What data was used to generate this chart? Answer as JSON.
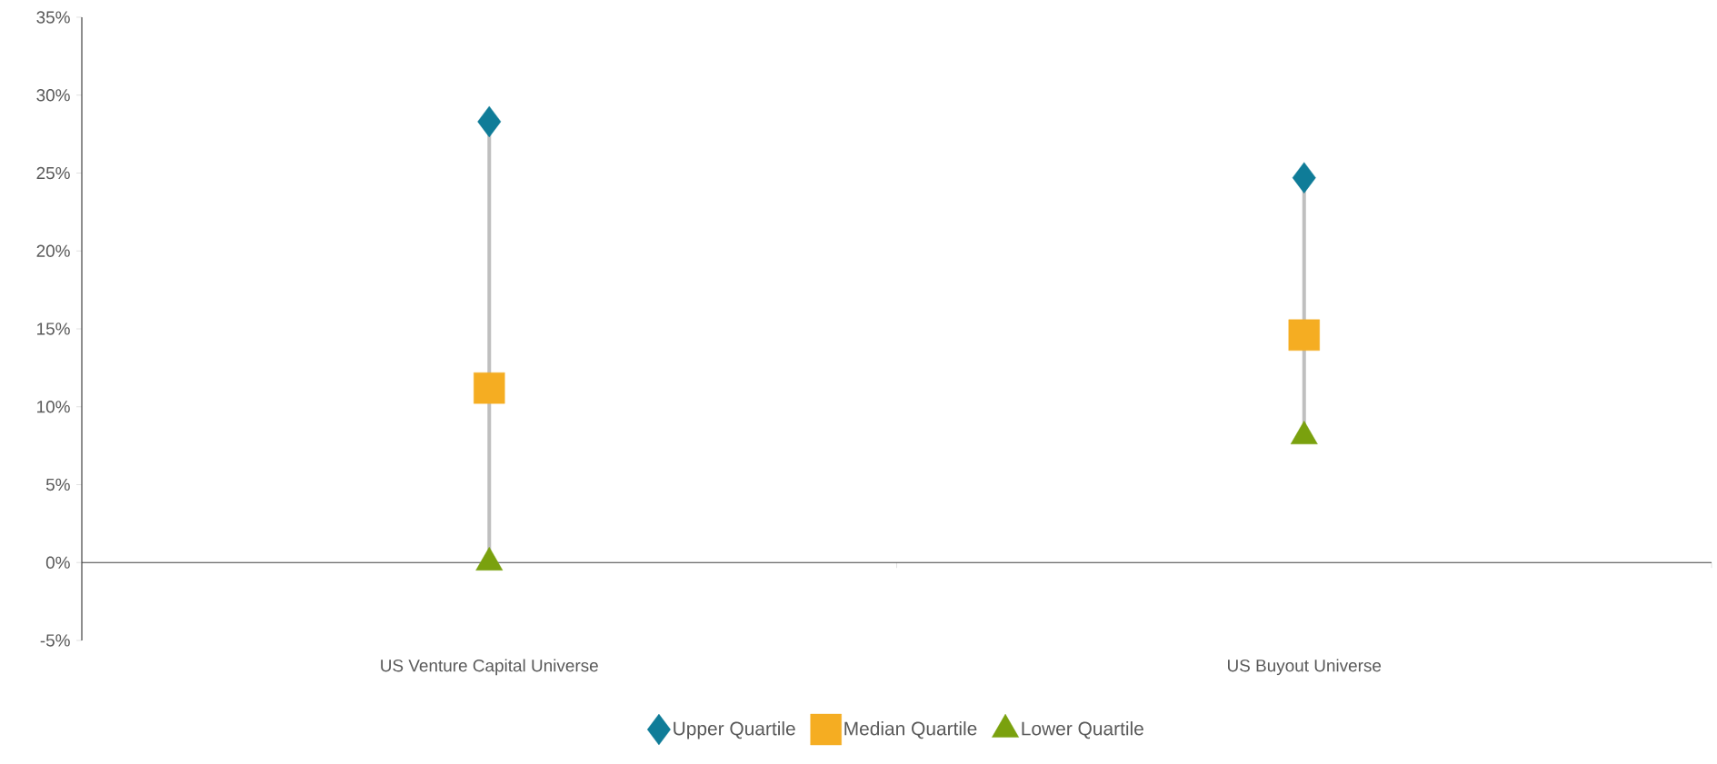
{
  "chart_data": {
    "type": "scatter",
    "categories": [
      "US Venture Capital Universe",
      "US Buyout Universe"
    ],
    "series": [
      {
        "name": "Upper Quartile",
        "color": "#0f7c98",
        "marker": "diamond",
        "values": [
          28.3,
          24.7
        ]
      },
      {
        "name": "Median Quartile",
        "color": "#f5ad22",
        "marker": "square",
        "values": [
          11.2,
          14.6
        ]
      },
      {
        "name": "Lower Quartile",
        "color": "#7aa10e",
        "marker": "triangle",
        "values": [
          0,
          8.1
        ]
      }
    ],
    "ylim": [
      -5,
      35
    ],
    "yticks": [
      {
        "value": -5,
        "label": "-5%"
      },
      {
        "value": 0,
        "label": "0%"
      },
      {
        "value": 5,
        "label": "5%"
      },
      {
        "value": 10,
        "label": "10%"
      },
      {
        "value": 15,
        "label": "15%"
      },
      {
        "value": 20,
        "label": "20%"
      },
      {
        "value": 25,
        "label": "25%"
      },
      {
        "value": 30,
        "label": "30%"
      },
      {
        "value": 35,
        "label": "35%"
      }
    ],
    "legend": "bottom",
    "grid": false
  }
}
